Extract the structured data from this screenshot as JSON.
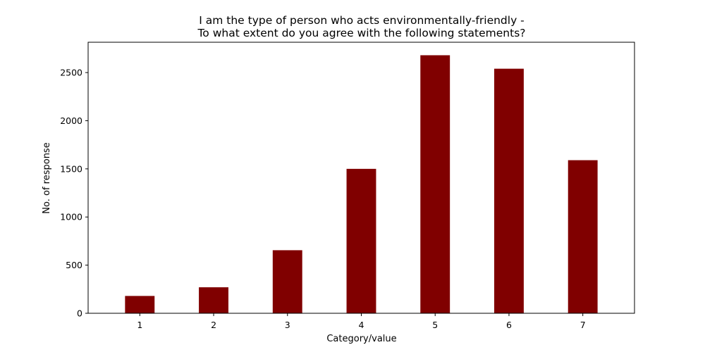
{
  "chart_data": {
    "type": "bar",
    "title": "I am the type of person who acts environmentally-friendly -",
    "subtitle": "To what extent do you agree with the following statements?",
    "xlabel": "Category/value",
    "ylabel": "No. of response",
    "categories": [
      "1",
      "2",
      "3",
      "4",
      "5",
      "6",
      "7"
    ],
    "values": [
      180,
      270,
      655,
      1500,
      2680,
      2540,
      1590
    ],
    "ylim": [
      0,
      2815
    ],
    "yticks": [
      0,
      500,
      1000,
      1500,
      2000,
      2500
    ],
    "yticks_labels": [
      "0",
      "500",
      "1000",
      "1500",
      "2000",
      "2500"
    ],
    "grid": false,
    "bar_color": "#800000"
  }
}
